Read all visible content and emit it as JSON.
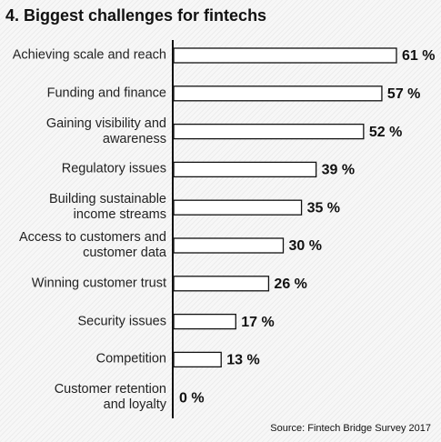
{
  "chart_data": {
    "type": "bar",
    "orientation": "horizontal",
    "title": "4. Biggest challenges for fintechs",
    "source": "Source: Fintech Bridge Survey 2017",
    "categories": [
      "Achieving scale and reach",
      "Funding and finance",
      "Gaining visibility and\nawareness",
      "Regulatory issues",
      "Building sustainable\nincome streams",
      "Access to customers and\ncustomer data",
      "Winning customer trust",
      "Security issues",
      "Competition",
      "Customer retention\nand loyalty"
    ],
    "values": [
      61,
      57,
      52,
      39,
      35,
      30,
      26,
      17,
      13,
      0
    ],
    "value_labels": [
      "61 %",
      "57 %",
      "52 %",
      "39 %",
      "35 %",
      "30 %",
      "26 %",
      "17 %",
      "13 %",
      "0 %"
    ],
    "color": "#ffffff"
  }
}
